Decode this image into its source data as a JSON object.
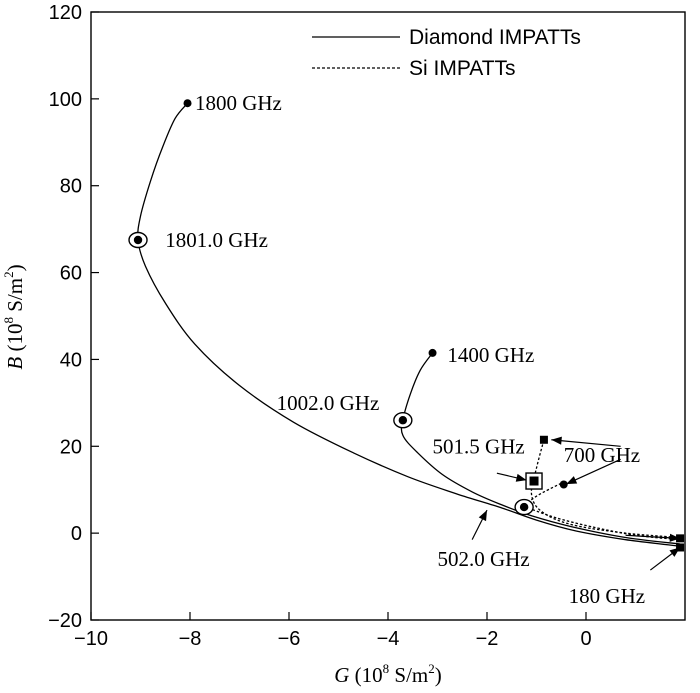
{
  "chart_data": {
    "type": "line",
    "xlabel_var": "G",
    "xlabel_unit": " (10",
    "xlabel_exp": "8",
    "xlabel_unit2": " S/m",
    "xlabel_exp2": "2",
    "xlabel_close": ")",
    "ylabel_var": "B",
    "ylabel_unit": " (10",
    "ylabel_exp": "8",
    "ylabel_unit2": " S/m",
    "ylabel_exp2": "2",
    "ylabel_close": ")",
    "xlim": [
      -10,
      2
    ],
    "ylim": [
      -20,
      120
    ],
    "xticks": [
      -10,
      -8,
      -6,
      -4,
      -2,
      0
    ],
    "xtick_labels": [
      "−10",
      "−8",
      "−6",
      "−4",
      "−2",
      "0"
    ],
    "yticks": [
      -20,
      0,
      20,
      40,
      60,
      80,
      100,
      120
    ],
    "ytick_labels": [
      "−20",
      "0",
      "20",
      "40",
      "60",
      "80",
      "100",
      "120"
    ],
    "grid": false,
    "legend_position": "top-right",
    "series": [
      {
        "name": "Diamond IMPATTs",
        "style": "solid",
        "x": [
          1.9,
          0.8,
          -0.2,
          -1.0,
          -1.7,
          -2.6,
          -3.6,
          -4.7,
          -5.9,
          -7.0,
          -7.9,
          -8.5,
          -8.9,
          -9.05,
          -9.0,
          -8.8,
          -8.55,
          -8.3,
          -8.05
        ],
        "y": [
          -3.0,
          -1.5,
          0.5,
          3.0,
          5.8,
          9.0,
          13.0,
          18.5,
          25.5,
          34.0,
          43.5,
          53.0,
          61.5,
          67.5,
          73.0,
          81.0,
          89.0,
          95.5,
          99.0
        ]
      },
      {
        "name": "Diamond IMPATTs",
        "style": "solid",
        "x": [
          1.9,
          0.8,
          -0.3,
          -1.1,
          -1.7,
          -2.3,
          -2.9,
          -3.4,
          -3.7,
          -3.7,
          -3.55,
          -3.35,
          -3.1
        ],
        "y": [
          -2.5,
          -1.0,
          1.5,
          4.0,
          6.5,
          9.5,
          13.5,
          18.5,
          22.5,
          26.0,
          32.0,
          37.5,
          41.5
        ]
      },
      {
        "name": "Si IMPATTs",
        "style": "dashed",
        "x": [
          1.9,
          1.0,
          0.1,
          -0.6,
          -1.1,
          -1.25,
          -1.0,
          -0.5
        ],
        "y": [
          -1.5,
          -0.5,
          1.5,
          3.5,
          5.5,
          6.0,
          8.5,
          11.5
        ]
      },
      {
        "name": "Si IMPATTs",
        "style": "dashed",
        "x": [
          1.9,
          0.8,
          -0.3,
          -0.9,
          -1.1,
          -1.0,
          -0.85
        ],
        "y": [
          -1.0,
          0.0,
          2.0,
          5.0,
          9.0,
          15.0,
          21.5
        ]
      }
    ],
    "markers": [
      {
        "shape": "dot",
        "x": -8.05,
        "y": 99.0
      },
      {
        "shape": "circled-dot",
        "x": -9.05,
        "y": 67.5
      },
      {
        "shape": "dot",
        "x": -3.1,
        "y": 41.5
      },
      {
        "shape": "circled-dot",
        "x": -3.7,
        "y": 26.0
      },
      {
        "shape": "circled-dot",
        "x": -1.25,
        "y": 6.0
      },
      {
        "shape": "boxed-square",
        "x": -1.05,
        "y": 12.0
      },
      {
        "shape": "square",
        "x": -0.85,
        "y": 21.5
      },
      {
        "shape": "dot",
        "x": -0.45,
        "y": 11.2
      },
      {
        "shape": "square",
        "x": 1.9,
        "y": -1.2
      },
      {
        "shape": "square",
        "x": 1.9,
        "y": -3.3
      }
    ],
    "annotations": [
      {
        "text": "1800 GHz",
        "x": -7.9,
        "y": 99.0
      },
      {
        "text": "1801.0 GHz",
        "x": -8.5,
        "y": 67.5
      },
      {
        "text": "1400 GHz",
        "x": -2.8,
        "y": 41.0
      },
      {
        "text": "1002.0 GHz",
        "x": -6.25,
        "y": 30.0
      },
      {
        "text": "501.5 GHz",
        "x": -3.1,
        "y": 20.0
      },
      {
        "text": "700 GHz",
        "x": -0.45,
        "y": 18.0
      },
      {
        "text": "502.0 GHz",
        "x": -3.0,
        "y": -6.0
      },
      {
        "text": "180 GHz",
        "x": -0.35,
        "y": -14.5
      }
    ],
    "arrows": [
      {
        "from": [
          -1.8,
          13.8
        ],
        "to": [
          -1.2,
          12.2
        ]
      },
      {
        "from": [
          0.7,
          20.0
        ],
        "to": [
          -0.7,
          21.5
        ]
      },
      {
        "from": [
          0.7,
          17.0
        ],
        "to": [
          -0.4,
          11.3
        ]
      },
      {
        "from": [
          -2.3,
          -1.5
        ],
        "to": [
          -2.0,
          5.3
        ]
      },
      {
        "from": [
          0.8,
          -0.5
        ],
        "to": [
          1.9,
          -1.2
        ]
      },
      {
        "from": [
          1.3,
          -8.5
        ],
        "to": [
          1.9,
          -3.3
        ]
      }
    ]
  }
}
